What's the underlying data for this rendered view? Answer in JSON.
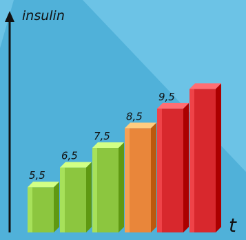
{
  "chart_data": {
    "type": "bar",
    "ylabel": "insulin",
    "xlabel": "t",
    "categories": [
      "",
      "",
      "",
      "",
      "",
      ""
    ],
    "values": [
      5.5,
      6.5,
      7.5,
      8.5,
      9.5,
      null
    ],
    "labels": [
      "5,5",
      "6,5",
      "7,5",
      "8,5",
      "9,5",
      ""
    ],
    "ylim": [
      0,
      11
    ],
    "grid": false,
    "legend": "none",
    "bar_colors": [
      "#8cc63f",
      "#8cc63f",
      "#8cc63f",
      "#e9863a",
      "#d8282d",
      "#d8282d"
    ],
    "last_bar_unlabeled_estimate": 10.5
  },
  "colors": {
    "background_light": "#6cc3e6",
    "background_shadow": "#3aa3cd",
    "axis": "#111111"
  }
}
